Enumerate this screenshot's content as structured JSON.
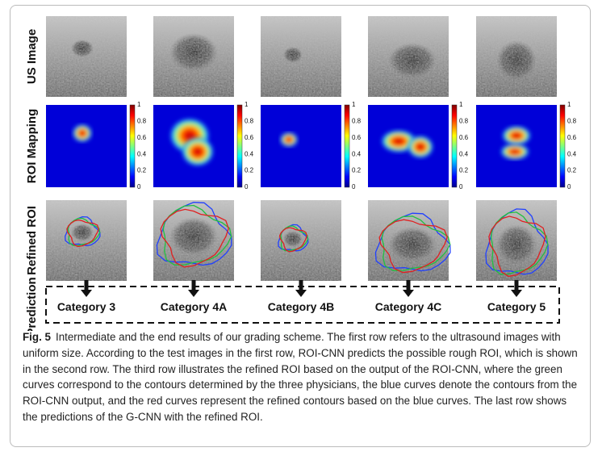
{
  "row_labels": [
    "US Image",
    "ROI Mapping",
    "Refined ROI",
    "Prediction"
  ],
  "colorbar_ticks": [
    1,
    0.8,
    0.6,
    0.4,
    0.2,
    0
  ],
  "categories": [
    "Category 3",
    "Category 4A",
    "Category 4B",
    "Category 4C",
    "Category 5"
  ],
  "caption": {
    "label": "Fig. 5",
    "text": "Intermediate and the end results of our grading scheme. The first row refers to the ultrasound images with uniform size. According to the test images in the first row, ROI-CNN predicts the possible rough ROI, which is shown in the second row. The third row illustrates the refined ROI based on the output of the ROI-CNN, where the green curves correspond to the contours determined by the three physicians, the blue curves denote the contours from the ROI-CNN output, and the red curves represent the refined contours based on the blue curves. The last row shows the predictions of the G-CNN with the refined ROI."
  }
}
